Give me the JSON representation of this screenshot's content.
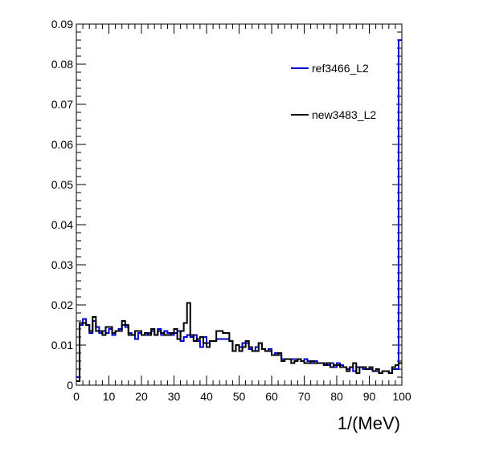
{
  "chart_data": {
    "type": "line",
    "title": "",
    "xlabel": "1/(MeV)",
    "ylabel": "",
    "xlim": [
      0,
      100
    ],
    "ylim": [
      0,
      0.09
    ],
    "grid": false,
    "legend_position": "top-right",
    "x_ticks": [
      0,
      10,
      20,
      30,
      40,
      50,
      60,
      70,
      80,
      90,
      100
    ],
    "y_ticks": [
      0,
      0.01,
      0.02,
      0.03,
      0.04,
      0.05,
      0.06,
      0.07,
      0.08,
      0.09
    ],
    "x_tick_labels": [
      "0",
      "10",
      "20",
      "30",
      "40",
      "50",
      "60",
      "70",
      "80",
      "90",
      "100"
    ],
    "y_tick_labels": [
      "0",
      "0.01",
      "0.02",
      "0.03",
      "0.04",
      "0.05",
      "0.06",
      "0.07",
      "0.08",
      "0.09"
    ],
    "bin_edges": [
      0,
      1,
      2,
      3,
      4,
      5,
      6,
      7,
      8,
      9,
      10,
      11,
      12,
      13,
      14,
      15,
      16,
      17,
      18,
      19,
      20,
      21,
      22,
      23,
      24,
      25,
      26,
      27,
      28,
      29,
      30,
      31,
      32,
      33,
      34,
      35,
      36,
      37,
      38,
      39,
      40,
      41,
      42,
      43,
      44,
      45,
      46,
      47,
      48,
      49,
      50,
      51,
      52,
      53,
      54,
      55,
      56,
      57,
      58,
      59,
      60,
      61,
      62,
      63,
      64,
      65,
      66,
      67,
      68,
      69,
      70,
      71,
      72,
      73,
      74,
      75,
      76,
      77,
      78,
      79,
      80,
      81,
      82,
      83,
      84,
      85,
      86,
      87,
      88,
      89,
      90,
      91,
      92,
      93,
      94,
      95,
      96,
      97,
      98,
      99,
      100
    ],
    "series": [
      {
        "name": "ref3466_L2",
        "color": "#0000cc",
        "values": [
          0.002,
          0.015,
          0.0165,
          0.015,
          0.013,
          0.016,
          0.0145,
          0.013,
          0.0135,
          0.013,
          0.014,
          0.0125,
          0.0135,
          0.014,
          0.015,
          0.0145,
          0.013,
          0.0125,
          0.0115,
          0.013,
          0.0125,
          0.0125,
          0.013,
          0.0135,
          0.0125,
          0.014,
          0.0125,
          0.0135,
          0.013,
          0.0125,
          0.013,
          0.0135,
          0.011,
          0.012,
          0.0125,
          0.012,
          0.0125,
          0.011,
          0.0095,
          0.012,
          0.0105,
          0.011,
          0.011,
          0.0115,
          0.0115,
          0.0115,
          0.0115,
          0.011,
          0.0085,
          0.01,
          0.0095,
          0.0105,
          0.0105,
          0.009,
          0.0085,
          0.0095,
          0.0105,
          0.009,
          0.0085,
          0.009,
          0.0075,
          0.008,
          0.0075,
          0.0065,
          0.0065,
          0.0065,
          0.0065,
          0.0065,
          0.0065,
          0.006,
          0.0065,
          0.006,
          0.0055,
          0.006,
          0.0055,
          0.0055,
          0.0055,
          0.005,
          0.0055,
          0.0045,
          0.0055,
          0.005,
          0.0045,
          0.004,
          0.0045,
          0.0035,
          0.0045,
          0.0045,
          0.004,
          0.004,
          0.004,
          0.0035,
          0.0035,
          0.003,
          0.0035,
          0.0035,
          0.003,
          0.004,
          0.004,
          0.086
        ]
      },
      {
        "name": "new3483_L2",
        "color": "#000000",
        "values": [
          0.001,
          0.0155,
          0.0155,
          0.015,
          0.0135,
          0.017,
          0.0135,
          0.0135,
          0.0125,
          0.0145,
          0.0145,
          0.013,
          0.0135,
          0.0135,
          0.016,
          0.015,
          0.0125,
          0.0125,
          0.0135,
          0.0135,
          0.0125,
          0.013,
          0.0125,
          0.014,
          0.0125,
          0.0135,
          0.013,
          0.0125,
          0.0125,
          0.013,
          0.014,
          0.0115,
          0.0135,
          0.0155,
          0.0205,
          0.0125,
          0.011,
          0.0115,
          0.012,
          0.0105,
          0.0095,
          0.011,
          0.011,
          0.0135,
          0.0135,
          0.013,
          0.013,
          0.011,
          0.0085,
          0.01,
          0.0085,
          0.0095,
          0.011,
          0.0095,
          0.0085,
          0.0085,
          0.0105,
          0.009,
          0.0085,
          0.0085,
          0.0075,
          0.0075,
          0.008,
          0.006,
          0.0065,
          0.0065,
          0.0055,
          0.006,
          0.0065,
          0.006,
          0.0055,
          0.0055,
          0.006,
          0.0055,
          0.0055,
          0.0055,
          0.005,
          0.0055,
          0.0045,
          0.005,
          0.005,
          0.0045,
          0.0045,
          0.0035,
          0.0045,
          0.0055,
          0.003,
          0.0045,
          0.0045,
          0.004,
          0.0045,
          0.0035,
          0.004,
          0.003,
          0.0035,
          0.0035,
          0.003,
          0.0045,
          0.005,
          0.0055
        ]
      }
    ]
  }
}
